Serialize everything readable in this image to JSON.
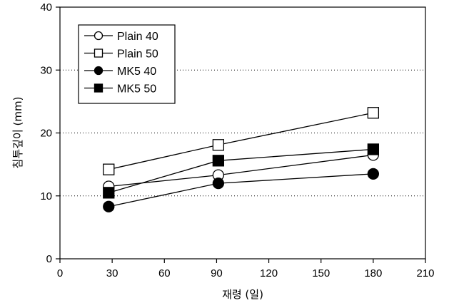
{
  "chart_data": {
    "type": "line",
    "xlabel": "재령 (일)",
    "ylabel": "침투깊이 (mm)",
    "xlim": [
      0,
      210
    ],
    "ylim": [
      0,
      40
    ],
    "xticks": [
      "0",
      "30",
      "60",
      "90",
      "120",
      "150",
      "180",
      "210"
    ],
    "yticks": [
      "0",
      "10",
      "20",
      "30",
      "40"
    ],
    "grid": "horizontal dotted",
    "legend_position": "top-left",
    "x": [
      28,
      91,
      180
    ],
    "series": [
      {
        "name": "Plain 40",
        "marker": "circle-open",
        "values": [
          11.5,
          13.3,
          16.5
        ]
      },
      {
        "name": "Plain 50",
        "marker": "square-open",
        "values": [
          14.2,
          18.1,
          23.2
        ]
      },
      {
        "name": "MK5 40",
        "marker": "circle-filled",
        "values": [
          8.3,
          12.0,
          13.5
        ]
      },
      {
        "name": "MK5 50",
        "marker": "square-filled",
        "values": [
          10.5,
          15.6,
          17.4
        ]
      }
    ]
  },
  "colors": {
    "line": "#000000",
    "background": "#ffffff",
    "grid": "#000000"
  }
}
